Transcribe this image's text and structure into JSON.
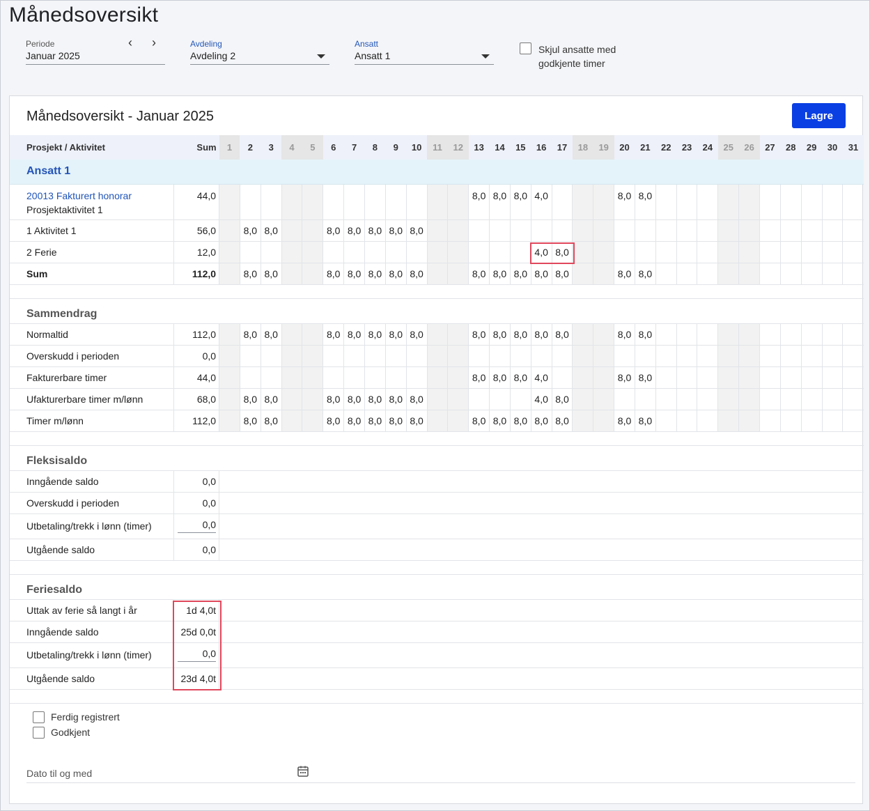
{
  "page_title": "Månedsoversikt",
  "filters": {
    "period_label": "Periode",
    "period_value": "Januar 2025",
    "prev": "‹",
    "next": "›",
    "dept_label": "Avdeling",
    "dept_value": "Avdeling 2",
    "emp_label": "Ansatt",
    "emp_value": "Ansatt 1",
    "hide_approved": "Skjul ansatte med godkjente timer"
  },
  "card": {
    "title": "Månedsoversikt - Januar 2025",
    "save_label": "Lagre"
  },
  "header": {
    "name": "Prosjekt / Aktivitet",
    "sum": "Sum",
    "days": [
      "1",
      "2",
      "3",
      "4",
      "5",
      "6",
      "7",
      "8",
      "9",
      "10",
      "11",
      "12",
      "13",
      "14",
      "15",
      "16",
      "17",
      "18",
      "19",
      "20",
      "21",
      "22",
      "23",
      "24",
      "25",
      "26",
      "27",
      "28",
      "29",
      "30",
      "31"
    ],
    "weekend": [
      "1",
      "4",
      "5",
      "11",
      "12",
      "18",
      "19",
      "25",
      "26"
    ]
  },
  "employee": "Ansatt 1",
  "project_rows": [
    {
      "name": "20013 Fakturert honorar",
      "sub": "Prosjektaktivitet 1",
      "sum": "44,0",
      "days": {
        "13": "8,0",
        "14": "8,0",
        "15": "8,0",
        "16": "4,0",
        "20": "8,0",
        "21": "8,0"
      }
    },
    {
      "name": "1 Aktivitet 1",
      "sum": "56,0",
      "days": {
        "2": "8,0",
        "3": "8,0",
        "6": "8,0",
        "7": "8,0",
        "8": "8,0",
        "9": "8,0",
        "10": "8,0"
      }
    },
    {
      "name": "2 Ferie",
      "sum": "12,0",
      "days": {
        "16": "4,0",
        "17": "8,0"
      }
    },
    {
      "name": "Sum",
      "sum": "112,0",
      "days": {
        "2": "8,0",
        "3": "8,0",
        "6": "8,0",
        "7": "8,0",
        "8": "8,0",
        "9": "8,0",
        "10": "8,0",
        "13": "8,0",
        "14": "8,0",
        "15": "8,0",
        "16": "8,0",
        "17": "8,0",
        "20": "8,0",
        "21": "8,0"
      }
    }
  ],
  "summary_title": "Sammendrag",
  "summary_rows": [
    {
      "name": "Normaltid",
      "sum": "112,0",
      "days": {
        "2": "8,0",
        "3": "8,0",
        "6": "8,0",
        "7": "8,0",
        "8": "8,0",
        "9": "8,0",
        "10": "8,0",
        "13": "8,0",
        "14": "8,0",
        "15": "8,0",
        "16": "8,0",
        "17": "8,0",
        "20": "8,0",
        "21": "8,0"
      }
    },
    {
      "name": "Overskudd i perioden",
      "sum": "0,0",
      "days": {}
    },
    {
      "name": "Fakturerbare timer",
      "sum": "44,0",
      "days": {
        "13": "8,0",
        "14": "8,0",
        "15": "8,0",
        "16": "4,0",
        "20": "8,0",
        "21": "8,0"
      }
    },
    {
      "name": "Ufakturerbare timer m/lønn",
      "sum": "68,0",
      "days": {
        "2": "8,0",
        "3": "8,0",
        "6": "8,0",
        "7": "8,0",
        "8": "8,0",
        "9": "8,0",
        "10": "8,0",
        "16": "4,0",
        "17": "8,0"
      }
    },
    {
      "name": "Timer m/lønn",
      "sum": "112,0",
      "days": {
        "2": "8,0",
        "3": "8,0",
        "6": "8,0",
        "7": "8,0",
        "8": "8,0",
        "9": "8,0",
        "10": "8,0",
        "13": "8,0",
        "14": "8,0",
        "15": "8,0",
        "16": "8,0",
        "17": "8,0",
        "20": "8,0",
        "21": "8,0"
      }
    }
  ],
  "flex_title": "Fleksisaldo",
  "flex_rows": [
    {
      "name": "Inngående saldo",
      "value": "0,0",
      "input": false
    },
    {
      "name": "Overskudd i perioden",
      "value": "0,0",
      "input": false
    },
    {
      "name": "Utbetaling/trekk i lønn (timer)",
      "value": "0,0",
      "input": true
    },
    {
      "name": "Utgående saldo",
      "value": "0,0",
      "input": false
    }
  ],
  "vacation_title": "Feriesaldo",
  "vacation_rows": [
    {
      "name": "Uttak av ferie så langt i år",
      "value": "1d 4,0t",
      "input": false
    },
    {
      "name": "Inngående saldo",
      "value": "25d 0,0t",
      "input": false
    },
    {
      "name": "Utbetaling/trekk i lønn (timer)",
      "value": "0,0",
      "input": true
    },
    {
      "name": "Utgående saldo",
      "value": "23d 4,0t",
      "input": false
    }
  ],
  "checks": {
    "done": "Ferdig registrert",
    "approved": "Godkjent"
  },
  "date_label": "Dato til og med",
  "icons": {
    "calendar": "calendar-icon"
  },
  "colors": {
    "primary": "#0a3fe3",
    "highlight": "#e0475b",
    "link": "#2054b8"
  }
}
